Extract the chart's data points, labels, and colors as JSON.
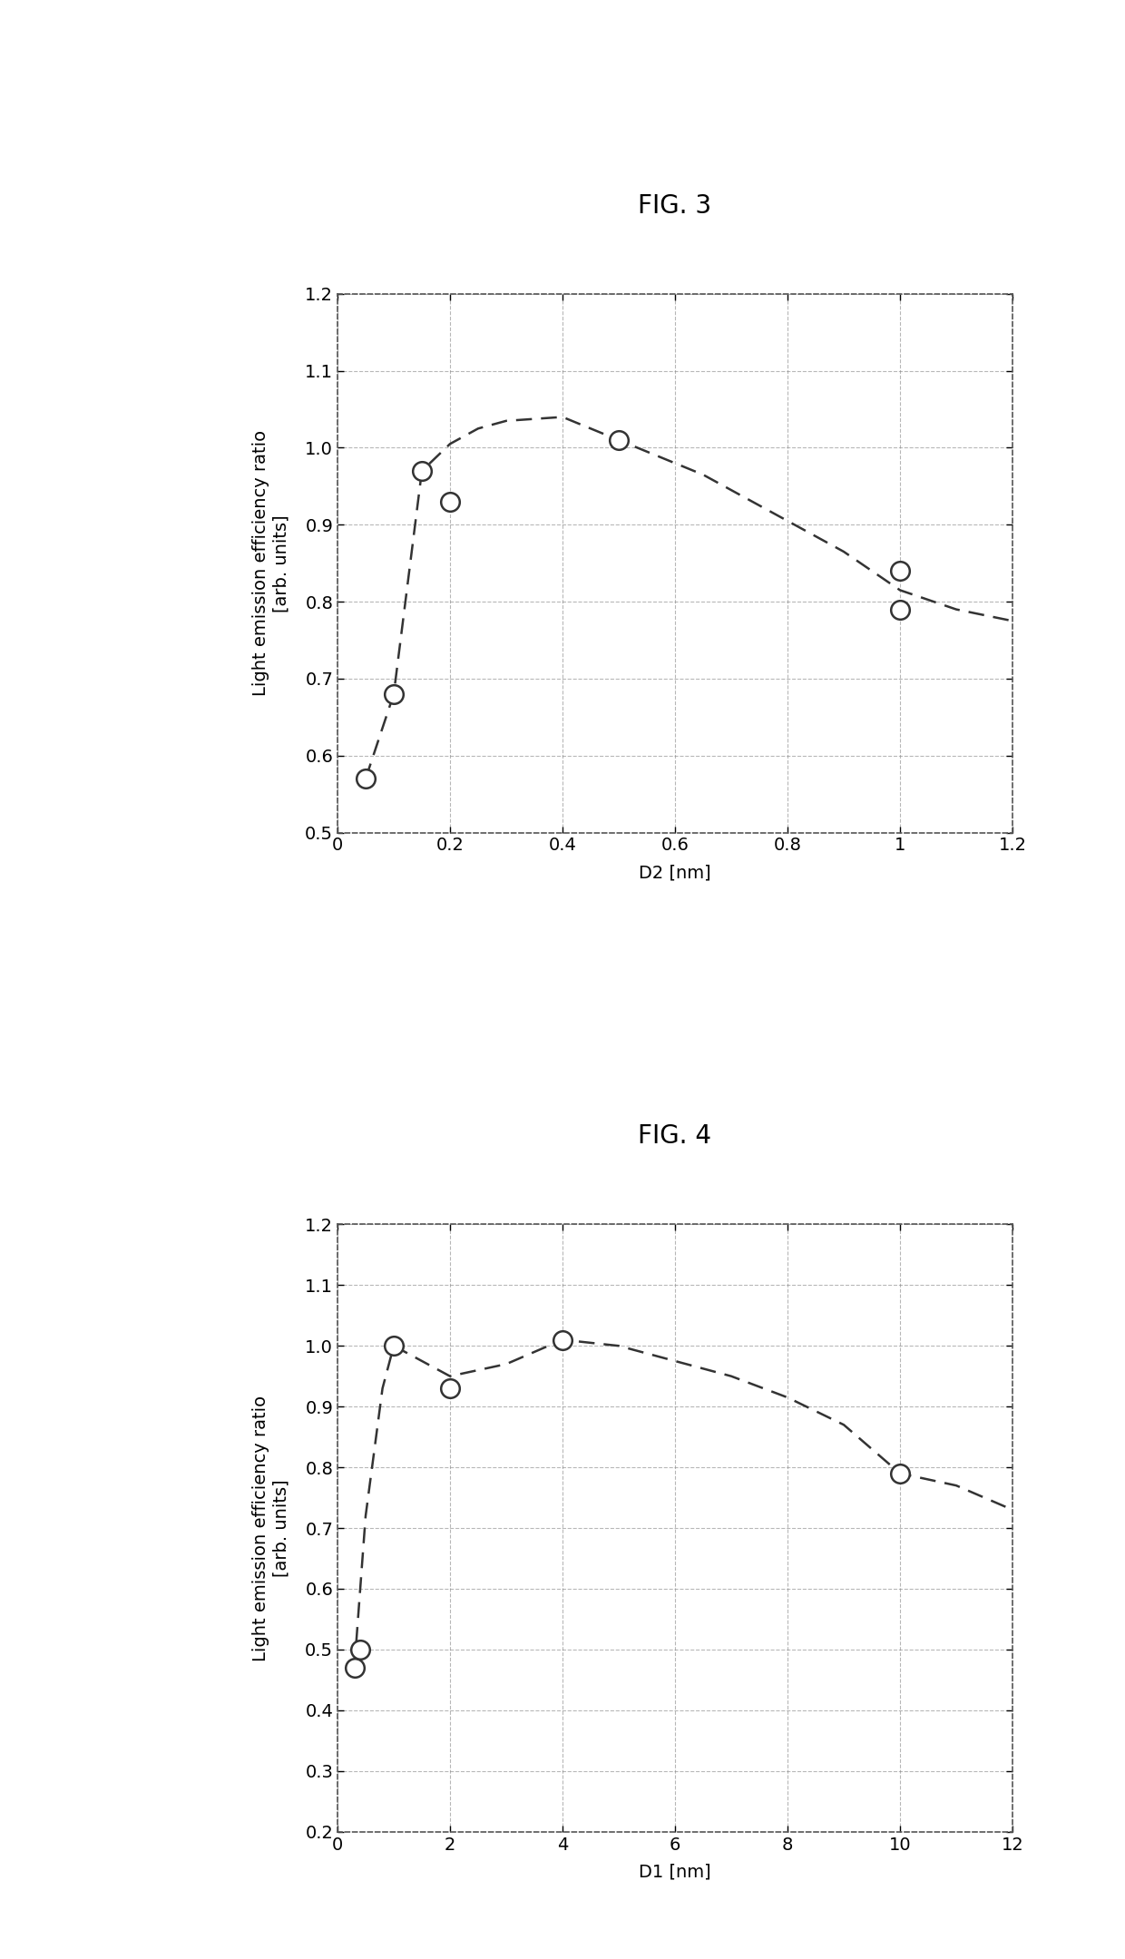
{
  "fig3": {
    "title": "FIG. 3",
    "xlabel": "D2 [nm]",
    "ylabel": "Light emission efficiency ratio\n[arb. units]",
    "xlim": [
      0,
      1.2
    ],
    "ylim": [
      0.5,
      1.2
    ],
    "xticks": [
      0,
      0.2,
      0.4,
      0.6,
      0.8,
      1.0,
      1.2
    ],
    "yticks": [
      0.5,
      0.6,
      0.7,
      0.8,
      0.9,
      1.0,
      1.1,
      1.2
    ],
    "data_x": [
      0.05,
      0.1,
      0.15,
      0.2,
      0.5,
      1.0,
      1.0
    ],
    "data_y": [
      0.57,
      0.68,
      0.97,
      0.93,
      1.01,
      0.84,
      0.79
    ],
    "curve_x": [
      0.05,
      0.1,
      0.15,
      0.2,
      0.25,
      0.3,
      0.4,
      0.5,
      0.65,
      0.8,
      0.9,
      1.0,
      1.1,
      1.2
    ],
    "curve_y": [
      0.57,
      0.68,
      0.97,
      1.005,
      1.025,
      1.035,
      1.04,
      1.01,
      0.965,
      0.905,
      0.865,
      0.815,
      0.79,
      0.775
    ]
  },
  "fig4": {
    "title": "FIG. 4",
    "xlabel": "D1 [nm]",
    "ylabel": "Light emission efficiency ratio\n[arb. units]",
    "xlim": [
      0,
      12
    ],
    "ylim": [
      0.2,
      1.2
    ],
    "xticks": [
      0,
      2,
      4,
      6,
      8,
      10,
      12
    ],
    "yticks": [
      0.2,
      0.3,
      0.4,
      0.5,
      0.6,
      0.7,
      0.8,
      0.9,
      1.0,
      1.1,
      1.2
    ],
    "data_x": [
      0.3,
      0.4,
      1.0,
      2.0,
      4.0,
      10.0
    ],
    "data_y": [
      0.47,
      0.5,
      1.0,
      0.93,
      1.01,
      0.79
    ],
    "curve_x": [
      0.3,
      0.5,
      0.8,
      1.0,
      1.5,
      2.0,
      3.0,
      4.0,
      5.0,
      6.0,
      7.0,
      8.0,
      9.0,
      10.0,
      11.0,
      12.0
    ],
    "curve_y": [
      0.47,
      0.72,
      0.93,
      1.0,
      0.975,
      0.95,
      0.97,
      1.01,
      1.0,
      0.975,
      0.95,
      0.915,
      0.87,
      0.79,
      0.77,
      0.73
    ]
  },
  "background_color": "#ffffff",
  "plot_bg_color": "#ffffff",
  "line_color": "#333333",
  "marker_color": "#ffffff",
  "marker_edge_color": "#333333",
  "grid_color": "#888888",
  "title_fontsize": 20,
  "label_fontsize": 14,
  "tick_fontsize": 14,
  "marker_size": 220
}
